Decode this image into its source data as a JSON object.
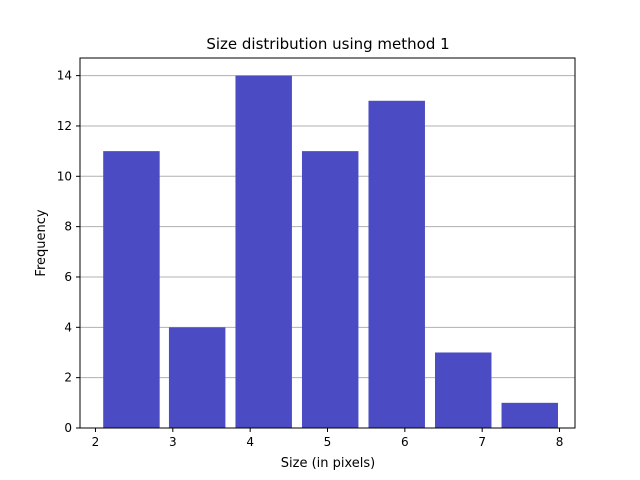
{
  "chart_data": {
    "type": "bar",
    "title": "Size distribution using method 1",
    "xlabel": "Size (in pixels)",
    "ylabel": "Frequency",
    "bars": [
      {
        "x_start": 2.1,
        "x_end": 2.83,
        "value": 11
      },
      {
        "x_start": 2.95,
        "x_end": 3.68,
        "value": 4
      },
      {
        "x_start": 3.81,
        "x_end": 4.54,
        "value": 14
      },
      {
        "x_start": 4.67,
        "x_end": 5.4,
        "value": 11
      },
      {
        "x_start": 5.53,
        "x_end": 6.26,
        "value": 13
      },
      {
        "x_start": 6.39,
        "x_end": 7.12,
        "value": 3
      },
      {
        "x_start": 7.25,
        "x_end": 7.98,
        "value": 1
      }
    ],
    "xlim": [
      1.8,
      8.2
    ],
    "ylim": [
      0,
      14.7
    ],
    "xticks": [
      2,
      3,
      4,
      5,
      6,
      7,
      8
    ],
    "yticks": [
      0,
      2,
      4,
      6,
      8,
      10,
      12,
      14
    ],
    "grid": "y-major",
    "bar_color": "#4b4bc3",
    "grid_color": "#b0b0b0"
  }
}
